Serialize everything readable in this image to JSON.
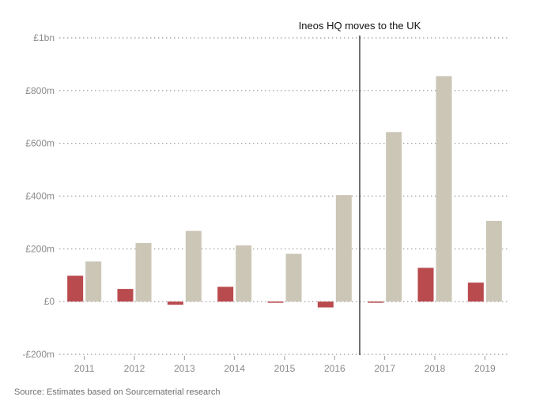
{
  "chart_data": {
    "type": "bar",
    "categories": [
      "2011",
      "2012",
      "2013",
      "2014",
      "2015",
      "2016",
      "2017",
      "2018",
      "2019"
    ],
    "series": [
      {
        "color": "#b94a4e",
        "values": [
          98,
          48,
          -12,
          56,
          -3,
          -22,
          -4,
          128,
          72
        ]
      },
      {
        "color": "#ccc6b6",
        "values": [
          152,
          222,
          268,
          213,
          181,
          404,
          643,
          855,
          306
        ]
      }
    ],
    "ylim": [
      -200,
      1000
    ],
    "yticks": [
      {
        "value": 1000,
        "label": "£1bn"
      },
      {
        "value": 800,
        "label": "£800m"
      },
      {
        "value": 600,
        "label": "£600m"
      },
      {
        "value": 400,
        "label": "£400m"
      },
      {
        "value": 200,
        "label": "£200m"
      },
      {
        "value": 0,
        "label": "£0"
      },
      {
        "value": -200,
        "label": "-£200m"
      }
    ],
    "grid": true,
    "annotation": {
      "text": "Ineos HQ moves to the UK",
      "between": [
        "2016",
        "2017"
      ]
    }
  },
  "source": "Source: Estimates based on Sourcematerial research"
}
